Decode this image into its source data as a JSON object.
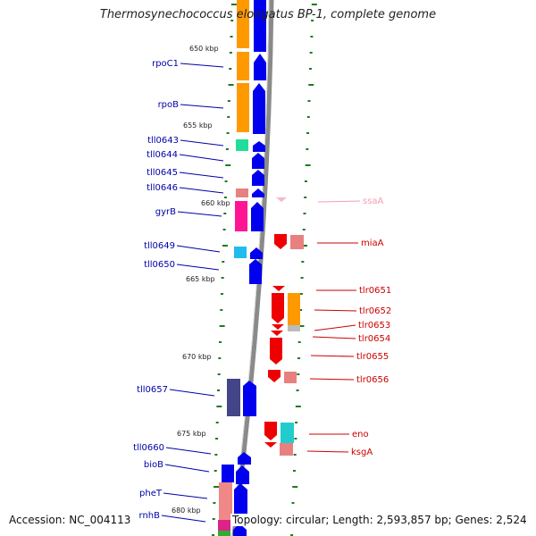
{
  "title": "Thermosynechococcus elongatus BP-1, complete genome",
  "footer": {
    "accession": "Accession: NC_004113",
    "topology": "Topology: circular; Length: 2,593,857 bp; Genes: 2,524"
  },
  "colors": {
    "backbone": "#8a8a8a",
    "tick": "#1f7a1f",
    "left_label": "#0000aa",
    "right_label": "#cc0000",
    "faded_label": "#f0a0b0",
    "gene_left": "#0000ee",
    "gene_right": "#ee0000"
  },
  "scale_marks": [
    "650 kbp",
    "655 kbp",
    "660 kbp",
    "665 kbp",
    "670 kbp",
    "675 kbp",
    "680 kbp"
  ],
  "left_genes": [
    "rpoC1",
    "rpoB",
    "tll0643",
    "tll0644",
    "tll0645",
    "tll0646",
    "gyrB",
    "tll0649",
    "tll0650",
    "tll0657",
    "tll0660",
    "bioB",
    "pheT",
    "rnhB"
  ],
  "right_genes": [
    "ssaA",
    "miaA",
    "tlr0651",
    "tlr0652",
    "tlr0653",
    "tlr0654",
    "tlr0655",
    "tlr0656",
    "eno",
    "ksgA"
  ]
}
